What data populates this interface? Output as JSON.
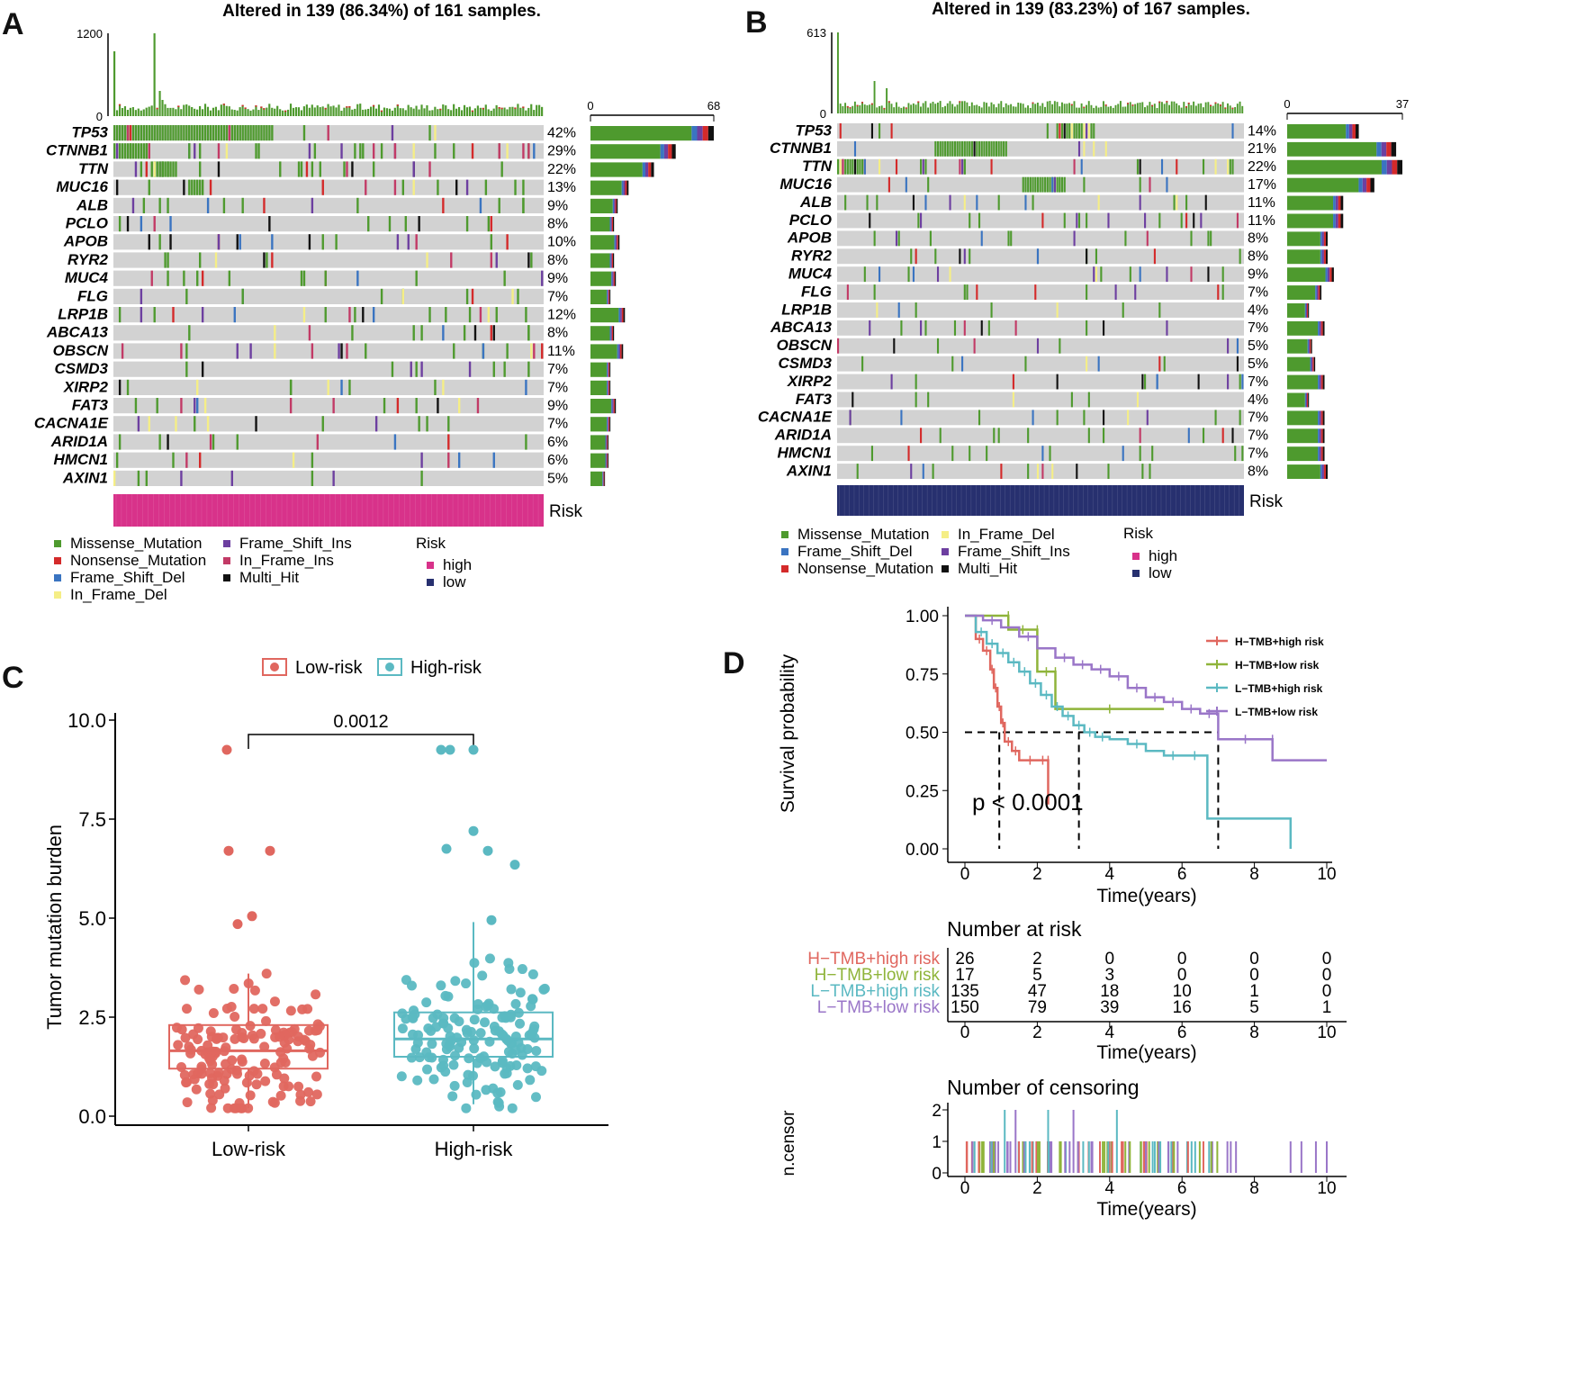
{
  "panels": {
    "a": "A",
    "b": "B",
    "c": "C",
    "d": "D"
  },
  "colors": {
    "missense": "#4e9a2e",
    "nonsense": "#d42a2a",
    "frame_shift_del": "#3a74c1",
    "in_frame_del": "#f5ee86",
    "frame_shift_ins": "#6d3fa0",
    "in_frame_ins": "#c23a66",
    "multi_hit": "#111111",
    "high": "#d8328a",
    "low": "#27306f",
    "bg": "#d2d2d2",
    "low_risk_box": "#e0675f",
    "high_risk_box": "#5bb9c2",
    "km_h_high": "#e0675f",
    "km_h_low": "#8fb43a",
    "km_l_high": "#5bb9c2",
    "km_l_low": "#9a76c8"
  },
  "chart_data": [
    {
      "type": "heatmap",
      "panel": "A",
      "title": "Altered in 139 (86.34%) of 161 samples.",
      "tmb_axis_ticks": [
        "1200",
        "0"
      ],
      "side_axis_ticks": [
        "0",
        "68"
      ],
      "genes": [
        "TP53",
        "CTNNB1",
        "TTN",
        "MUC16",
        "ALB",
        "PCLO",
        "APOB",
        "RYR2",
        "MUC4",
        "FLG",
        "LRP1B",
        "ABCA13",
        "OBSCN",
        "CSMD3",
        "XIRP2",
        "FAT3",
        "CACNA1E",
        "ARID1A",
        "HMCN1",
        "AXIN1"
      ],
      "percents": [
        "42%",
        "29%",
        "22%",
        "13%",
        "9%",
        "8%",
        "10%",
        "8%",
        "9%",
        "7%",
        "12%",
        "8%",
        "11%",
        "7%",
        "7%",
        "9%",
        "7%",
        "6%",
        "6%",
        "5%"
      ],
      "gene_counts": [
        68,
        47,
        35,
        21,
        15,
        13,
        16,
        13,
        14,
        11,
        19,
        13,
        18,
        11,
        11,
        14,
        11,
        10,
        10,
        8
      ],
      "risk_label": "Risk",
      "risk_group": "high"
    },
    {
      "type": "heatmap",
      "panel": "B",
      "title": "Altered in 139 (83.23%) of 167 samples.",
      "tmb_axis_ticks": [
        "613",
        "0"
      ],
      "side_axis_ticks": [
        "0",
        "37"
      ],
      "genes": [
        "TP53",
        "CTNNB1",
        "TTN",
        "MUC16",
        "ALB",
        "PCLO",
        "APOB",
        "RYR2",
        "MUC4",
        "FLG",
        "LRP1B",
        "ABCA13",
        "OBSCN",
        "CSMD3",
        "XIRP2",
        "FAT3",
        "CACNA1E",
        "ARID1A",
        "HMCN1",
        "AXIN1"
      ],
      "percents": [
        "14%",
        "21%",
        "22%",
        "17%",
        "11%",
        "11%",
        "8%",
        "8%",
        "9%",
        "7%",
        "4%",
        "7%",
        "5%",
        "5%",
        "7%",
        "4%",
        "7%",
        "7%",
        "7%",
        "8%"
      ],
      "gene_counts": [
        23,
        35,
        37,
        28,
        18,
        18,
        13,
        13,
        15,
        11,
        7,
        12,
        8,
        9,
        12,
        7,
        12,
        12,
        12,
        13
      ],
      "risk_label": "Risk",
      "risk_group": "low"
    },
    {
      "type": "scatter",
      "panel": "C",
      "subtype": "box-with-jitter",
      "legend": [
        "Low-risk",
        "High-risk"
      ],
      "categories": [
        "Low-risk",
        "High-risk"
      ],
      "ylabel": "Tumor mutation burden",
      "yticks": [
        "0.0",
        "2.5",
        "5.0",
        "7.5",
        "10.0"
      ],
      "ylim": [
        0,
        10
      ],
      "pvalue": "0.0012",
      "boxes": [
        {
          "name": "Low-risk",
          "q1": 1.2,
          "median": 1.65,
          "q3": 2.3,
          "whisker_low": 0.2,
          "whisker_high": 3.6
        },
        {
          "name": "High-risk",
          "q1": 1.5,
          "median": 1.95,
          "q3": 2.62,
          "whisker_low": 0.3,
          "whisker_high": 4.9
        }
      ],
      "outliers": [
        {
          "group": "Low-risk",
          "values": [
            9.25,
            6.7,
            6.7,
            5.05,
            4.85
          ]
        },
        {
          "group": "High-risk",
          "values": [
            9.25,
            9.25,
            9.25,
            7.2,
            6.75,
            6.7,
            6.35,
            4.95
          ]
        }
      ]
    },
    {
      "type": "line",
      "panel": "D",
      "subtype": "kaplan-meier",
      "ylabel": "Survival probability",
      "xlabel": "Time(years)",
      "xticks": [
        "0",
        "2",
        "4",
        "6",
        "8",
        "10"
      ],
      "yticks": [
        "0.00",
        "0.25",
        "0.50",
        "0.75",
        "1.00"
      ],
      "xlim": [
        0,
        10
      ],
      "ylim": [
        0,
        1
      ],
      "pvalue_text": "p < 0.0001",
      "median_lines_x": [
        0.95,
        3.15,
        7.0
      ],
      "series": [
        {
          "name": "H−TMB+high risk",
          "x": [
            0,
            0.3,
            0.5,
            0.7,
            0.8,
            0.9,
            1.0,
            1.1,
            1.3,
            1.5,
            1.6,
            2.0,
            2.3,
            2.3
          ],
          "y": [
            1,
            0.9,
            0.85,
            0.77,
            0.69,
            0.61,
            0.54,
            0.46,
            0.42,
            0.38,
            0.38,
            0.38,
            0.38,
            0.19
          ]
        },
        {
          "name": "H−TMB+low risk",
          "x": [
            0,
            1.2,
            1.2,
            2.0,
            2.0,
            2.5,
            2.5,
            5.5
          ],
          "y": [
            1,
            1,
            0.94,
            0.94,
            0.76,
            0.76,
            0.6,
            0.6
          ]
        },
        {
          "name": "L−TMB+high risk",
          "x": [
            0,
            0.3,
            0.6,
            0.9,
            1.2,
            1.5,
            1.8,
            2.1,
            2.4,
            2.7,
            3.0,
            3.3,
            3.6,
            4.0,
            4.5,
            5.0,
            5.5,
            6.0,
            6.7,
            6.7,
            9.0,
            9.0
          ],
          "y": [
            1,
            0.93,
            0.88,
            0.84,
            0.8,
            0.76,
            0.71,
            0.66,
            0.61,
            0.57,
            0.53,
            0.5,
            0.48,
            0.47,
            0.45,
            0.42,
            0.4,
            0.4,
            0.4,
            0.13,
            0.13,
            0.0
          ]
        },
        {
          "name": "L−TMB+low risk",
          "x": [
            0,
            0.5,
            1.0,
            1.5,
            2.0,
            2.5,
            3.0,
            3.5,
            4.0,
            4.5,
            5.0,
            5.5,
            6.0,
            6.5,
            7.0,
            7.0,
            8.5,
            8.5,
            10.0
          ],
          "y": [
            1,
            0.98,
            0.95,
            0.91,
            0.86,
            0.82,
            0.79,
            0.77,
            0.74,
            0.69,
            0.65,
            0.63,
            0.6,
            0.58,
            0.58,
            0.47,
            0.47,
            0.38,
            0.38
          ]
        }
      ],
      "risk_table": {
        "title": "Number at risk",
        "xlabel": "Time(years)",
        "rows": [
          {
            "name": "H−TMB+high risk",
            "values": [
              "26",
              "2",
              "0",
              "0",
              "0",
              "0"
            ]
          },
          {
            "name": "H−TMB+low risk",
            "values": [
              "17",
              "5",
              "3",
              "0",
              "0",
              "0"
            ]
          },
          {
            "name": "L−TMB+high risk",
            "values": [
              "135",
              "47",
              "18",
              "10",
              "1",
              "0"
            ]
          },
          {
            "name": "L−TMB+low risk",
            "values": [
              "150",
              "79",
              "39",
              "16",
              "5",
              "1"
            ]
          }
        ]
      },
      "censor_plot": {
        "title": "Number of censoring",
        "ylabel": "n.censor",
        "xlabel": "Time(years)",
        "yticks": [
          "0",
          "1",
          "2"
        ],
        "double_events_x": [
          1.1,
          1.4,
          2.3,
          3.0,
          4.2
        ]
      }
    }
  ],
  "legend_a": {
    "items": [
      "Missense_Mutation",
      "Nonsense_Mutation",
      "Frame_Shift_Del",
      "In_Frame_Del",
      "Frame_Shift_Ins",
      "In_Frame_Ins",
      "Multi_Hit"
    ],
    "risk_title": "Risk",
    "risk_items": [
      "high",
      "low"
    ]
  },
  "legend_b": {
    "items": [
      "Missense_Mutation",
      "Frame_Shift_Del",
      "Nonsense_Mutation",
      "In_Frame_Del",
      "Frame_Shift_Ins",
      "Multi_Hit"
    ],
    "risk_title": "Risk",
    "risk_items": [
      "high",
      "low"
    ]
  }
}
